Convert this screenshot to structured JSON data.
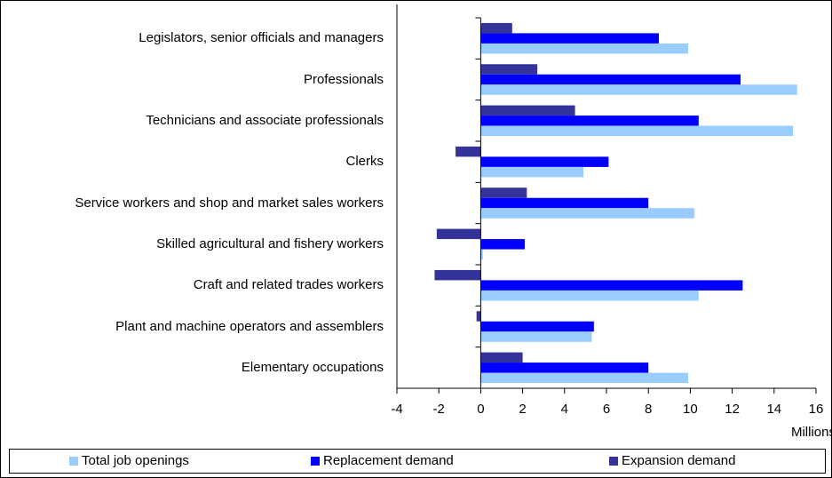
{
  "chart_data": {
    "type": "barh",
    "categories": [
      "Legislators, senior officials and managers",
      "Professionals",
      "Technicians and associate professionals",
      "Clerks",
      "Service workers and shop and market sales workers",
      "Skilled agricultural and fishery workers",
      "Craft and related trades workers",
      "Plant and machine operators and assemblers",
      "Elementary occupations"
    ],
    "series": [
      {
        "name": "Total job openings",
        "color": "#99ccff",
        "values": [
          9.9,
          15.1,
          14.9,
          4.9,
          10.2,
          0.1,
          10.4,
          5.3,
          9.9
        ]
      },
      {
        "name": "Replacement demand",
        "color": "#0000ff",
        "values": [
          8.5,
          12.4,
          10.4,
          6.1,
          8.0,
          2.1,
          12.5,
          5.4,
          8.0
        ]
      },
      {
        "name": "Expansion demand",
        "color": "#333399",
        "values": [
          1.5,
          2.7,
          4.5,
          -1.2,
          2.2,
          -2.1,
          -2.2,
          -0.2,
          2.0
        ]
      }
    ],
    "xlim": [
      -4,
      16
    ],
    "xticks": [
      -4,
      -2,
      0,
      2,
      4,
      6,
      8,
      10,
      12,
      14,
      16
    ],
    "xlabel": "Millions",
    "legend": "bottom"
  }
}
